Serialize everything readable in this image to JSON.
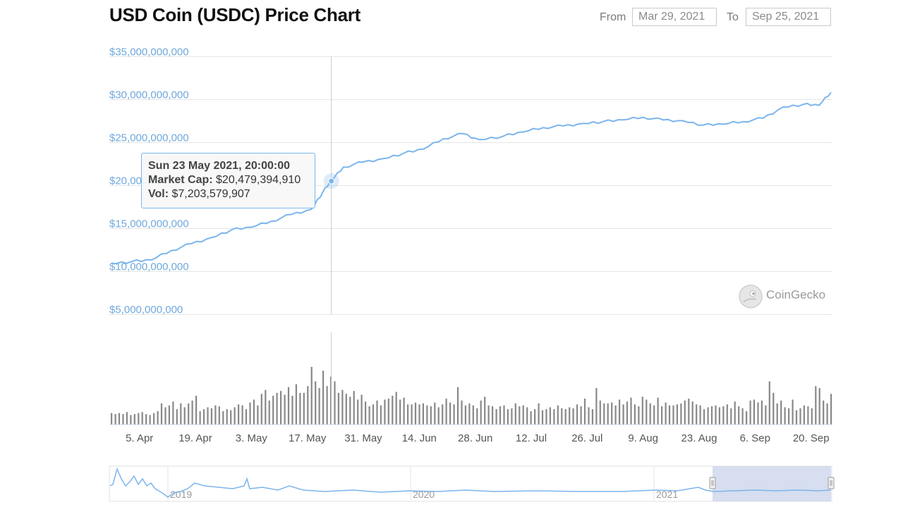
{
  "header": {
    "title": "USD Coin (USDC) Price Chart",
    "from_label": "From",
    "from_value": "Mar 29, 2021",
    "to_label": "To",
    "to_value": "Sep 25, 2021"
  },
  "tooltip": {
    "date": "Sun 23 May 2021, 20:00:00",
    "market_cap_label": "Market Cap:",
    "market_cap_value": "$20,479,394,910",
    "vol_label": "Vol:",
    "vol_value": "$7,203,579,907"
  },
  "watermark": {
    "text": "CoinGecko"
  },
  "colors": {
    "line": "#7cb5ec",
    "axis_label": "#6fa8dc",
    "volume": "#888888",
    "navigator_fill": "#ccd6eb"
  },
  "chart_data": [
    {
      "type": "line",
      "title": "USD Coin (USDC) Price Chart",
      "series": [
        {
          "name": "Market Cap",
          "x": [
            "2021-03-29",
            "2021-04-03",
            "2021-04-08",
            "2021-04-13",
            "2021-04-18",
            "2021-04-23",
            "2021-04-28",
            "2021-05-03",
            "2021-05-08",
            "2021-05-13",
            "2021-05-18",
            "2021-05-21",
            "2021-05-23",
            "2021-05-26",
            "2021-05-31",
            "2021-06-05",
            "2021-06-10",
            "2021-06-15",
            "2021-06-20",
            "2021-06-25",
            "2021-06-29",
            "2021-07-05",
            "2021-07-10",
            "2021-07-15",
            "2021-07-20",
            "2021-07-25",
            "2021-07-30",
            "2021-08-04",
            "2021-08-09",
            "2021-08-14",
            "2021-08-19",
            "2021-08-24",
            "2021-08-29",
            "2021-09-03",
            "2021-09-08",
            "2021-09-13",
            "2021-09-18",
            "2021-09-22",
            "2021-09-25"
          ],
          "values": [
            10900000000,
            11100000000,
            11300000000,
            12400000000,
            13200000000,
            13900000000,
            14800000000,
            15100000000,
            15800000000,
            16600000000,
            17200000000,
            19300000000,
            20479394910,
            22100000000,
            22700000000,
            23100000000,
            23700000000,
            24200000000,
            25400000000,
            26000000000,
            25300000000,
            25700000000,
            26200000000,
            26700000000,
            26900000000,
            27200000000,
            27400000000,
            27600000000,
            27900000000,
            27600000000,
            27500000000,
            27000000000,
            27100000000,
            27400000000,
            27800000000,
            29100000000,
            29400000000,
            29300000000,
            30800000000
          ]
        }
      ],
      "ylim": [
        5000000000,
        35000000000
      ],
      "ytick_labels": [
        "$35,000,000,000",
        "$30,000,000,000",
        "$25,000,000,000",
        "$20,000,000,000",
        "$15,000,000,000",
        "$10,000,000,000",
        "$5,000,000,000"
      ],
      "ytick_values": [
        35000000000,
        30000000000,
        25000000000,
        20000000000,
        15000000000,
        10000000000,
        5000000000
      ],
      "grid": true,
      "crosshair_date": "2021-05-23"
    },
    {
      "type": "bar",
      "name": "Volume",
      "xlim": [
        "2021-03-29",
        "2021-09-25"
      ],
      "x_tick_labels": [
        "5. Apr",
        "19. Apr",
        "3. May",
        "17. May",
        "31. May",
        "14. Jun",
        "28. Jun",
        "12. Jul",
        "26. Jul",
        "9. Aug",
        "23. Aug",
        "6. Sep",
        "20. Sep"
      ],
      "x_tick_dates": [
        "2021-04-05",
        "2021-04-19",
        "2021-05-03",
        "2021-05-17",
        "2021-05-31",
        "2021-06-14",
        "2021-06-28",
        "2021-07-12",
        "2021-07-26",
        "2021-08-09",
        "2021-08-23",
        "2021-09-06",
        "2021-09-20"
      ],
      "values_rel": [
        12,
        11,
        12,
        11,
        13,
        10,
        11,
        12,
        13,
        11,
        10,
        12,
        14,
        22,
        18,
        20,
        24,
        16,
        22,
        18,
        22,
        25,
        30,
        14,
        16,
        18,
        17,
        20,
        19,
        14,
        16,
        15,
        18,
        21,
        20,
        16,
        23,
        26,
        20,
        32,
        36,
        25,
        30,
        33,
        35,
        31,
        39,
        30,
        42,
        33,
        33,
        40,
        60,
        45,
        38,
        56,
        40,
        50,
        45,
        33,
        36,
        32,
        29,
        35,
        26,
        31,
        24,
        19,
        21,
        25,
        20,
        26,
        27,
        30,
        34,
        26,
        28,
        21,
        21,
        23,
        21,
        22,
        20,
        19,
        23,
        18,
        21,
        27,
        23,
        21,
        39,
        25,
        20,
        22,
        20,
        17,
        25,
        29,
        20,
        19,
        16,
        19,
        20,
        16,
        17,
        22,
        19,
        20,
        18,
        14,
        16,
        22,
        15,
        16,
        18,
        16,
        20,
        17,
        16,
        18,
        17,
        21,
        19,
        27,
        18,
        16,
        38,
        25,
        22,
        22,
        23,
        20,
        26,
        21,
        24,
        28,
        21,
        19,
        29,
        26,
        22,
        20,
        28,
        19,
        23,
        20,
        20,
        21,
        22,
        25,
        27,
        24,
        21,
        20,
        16,
        18,
        19,
        20,
        18,
        19,
        21,
        17,
        24,
        19,
        17,
        14,
        25,
        26,
        23,
        25,
        20,
        45,
        33,
        22,
        25,
        18,
        17,
        26,
        15,
        17,
        20,
        19,
        17,
        40,
        38,
        25,
        22,
        32
      ],
      "grid": false
    },
    {
      "type": "area",
      "name": "Navigator",
      "x_tick_labels": [
        "2019",
        "2020",
        "2021"
      ],
      "selection": [
        "2021-03-29",
        "2021-09-25"
      ]
    }
  ]
}
